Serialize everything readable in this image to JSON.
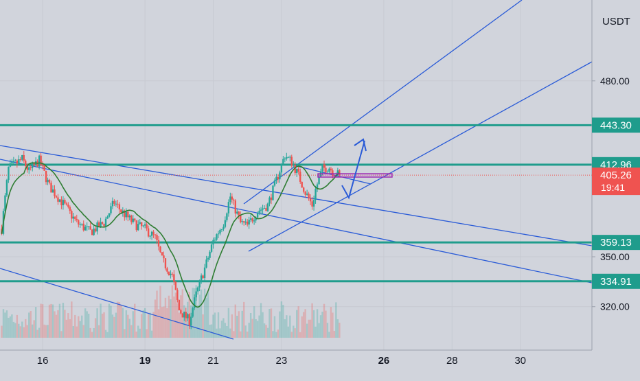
{
  "chart_data": {
    "type": "candlestick",
    "currency_label": "USDT",
    "x_ticks": [
      {
        "label": "16",
        "day": 16,
        "bold": false
      },
      {
        "label": "19",
        "day": 19,
        "bold": true
      },
      {
        "label": "21",
        "day": 21,
        "bold": false
      },
      {
        "label": "23",
        "day": 23,
        "bold": false
      },
      {
        "label": "26",
        "day": 26,
        "bold": true
      },
      {
        "label": "28",
        "day": 28,
        "bold": false
      },
      {
        "label": "30",
        "day": 30,
        "bold": false
      }
    ],
    "y_ticks": [
      "480.00",
      "350.00",
      "320.00"
    ],
    "y_scale": "log",
    "xlim_days": [
      14.75,
      32.1
    ],
    "ylim": [
      296,
      555
    ],
    "price_badges": [
      {
        "label": "443.30",
        "value": 443.3,
        "color": "#1f9c8c"
      },
      {
        "label": "412.96",
        "value": 412.96,
        "color": "#1f9c8c"
      },
      {
        "label": "359.13",
        "value": 359.13,
        "color": "#1f9c8c"
      },
      {
        "label": "334.91",
        "value": 334.91,
        "color": "#1f9c8c"
      }
    ],
    "last_price": {
      "label": "405.26",
      "value": 405.26,
      "countdown": "19:41",
      "color": "#ef5350"
    },
    "horizontal_levels": [
      443.3,
      412.96,
      359.13,
      334.91
    ],
    "price_series": {
      "day": [
        14.8,
        15.0,
        15.4,
        15.6,
        15.9,
        16.2,
        16.6,
        17.0,
        17.4,
        17.8,
        18.1,
        18.3,
        18.7,
        19.0,
        19.3,
        19.5,
        19.8,
        20.0,
        20.3,
        20.5,
        20.8,
        21.0,
        21.3,
        21.5,
        21.8,
        22.0,
        22.3,
        22.6,
        22.9,
        23.1,
        23.3,
        23.5,
        23.7,
        23.9,
        24.0,
        24.2,
        24.4,
        24.5,
        24.7
      ],
      "close": [
        368,
        410,
        417,
        408,
        416,
        397,
        385,
        372,
        366,
        372,
        386,
        380,
        371,
        368,
        362,
        348,
        338,
        318,
        312,
        327,
        346,
        360,
        372,
        390,
        372,
        370,
        380,
        384,
        405,
        420,
        415,
        405,
        393,
        384,
        395,
        410,
        411,
        408,
        405.26
      ]
    },
    "colors": {
      "up": "#26a69a",
      "down": "#ef5350",
      "trendline": "#2a5bd7",
      "moving_average": "#2e7d32",
      "level": "#1f9c8c",
      "zone": "#9c27b0"
    }
  }
}
